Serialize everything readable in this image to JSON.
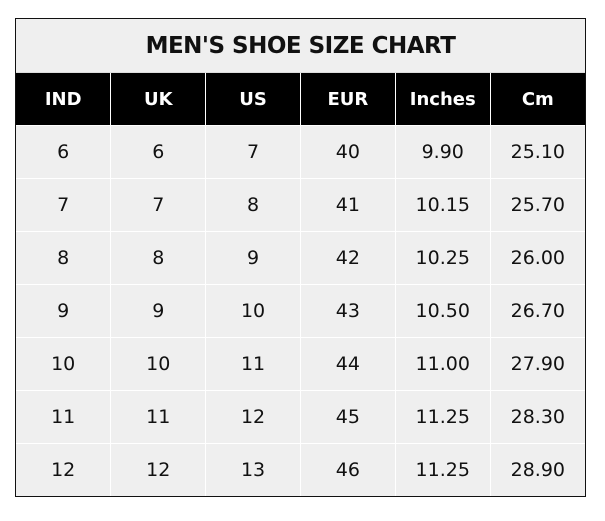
{
  "title": "MEN'S SHOE SIZE CHART",
  "chart_data": {
    "type": "table",
    "title": "MEN'S SHOE SIZE CHART",
    "columns": [
      "IND",
      "UK",
      "US",
      "EUR",
      "Inches",
      "Cm"
    ],
    "rows": [
      [
        "6",
        "6",
        "7",
        "40",
        "9.90",
        "25.10"
      ],
      [
        "7",
        "7",
        "8",
        "41",
        "10.15",
        "25.70"
      ],
      [
        "8",
        "8",
        "9",
        "42",
        "10.25",
        "26.00"
      ],
      [
        "9",
        "9",
        "10",
        "43",
        "10.50",
        "26.70"
      ],
      [
        "10",
        "10",
        "11",
        "44",
        "11.00",
        "27.90"
      ],
      [
        "11",
        "11",
        "12",
        "45",
        "11.25",
        "28.30"
      ],
      [
        "12",
        "12",
        "13",
        "46",
        "11.25",
        "28.90"
      ]
    ]
  },
  "colors": {
    "header_bg": "#000000",
    "cell_bg": "#efefef",
    "grid": "#ffffff"
  }
}
